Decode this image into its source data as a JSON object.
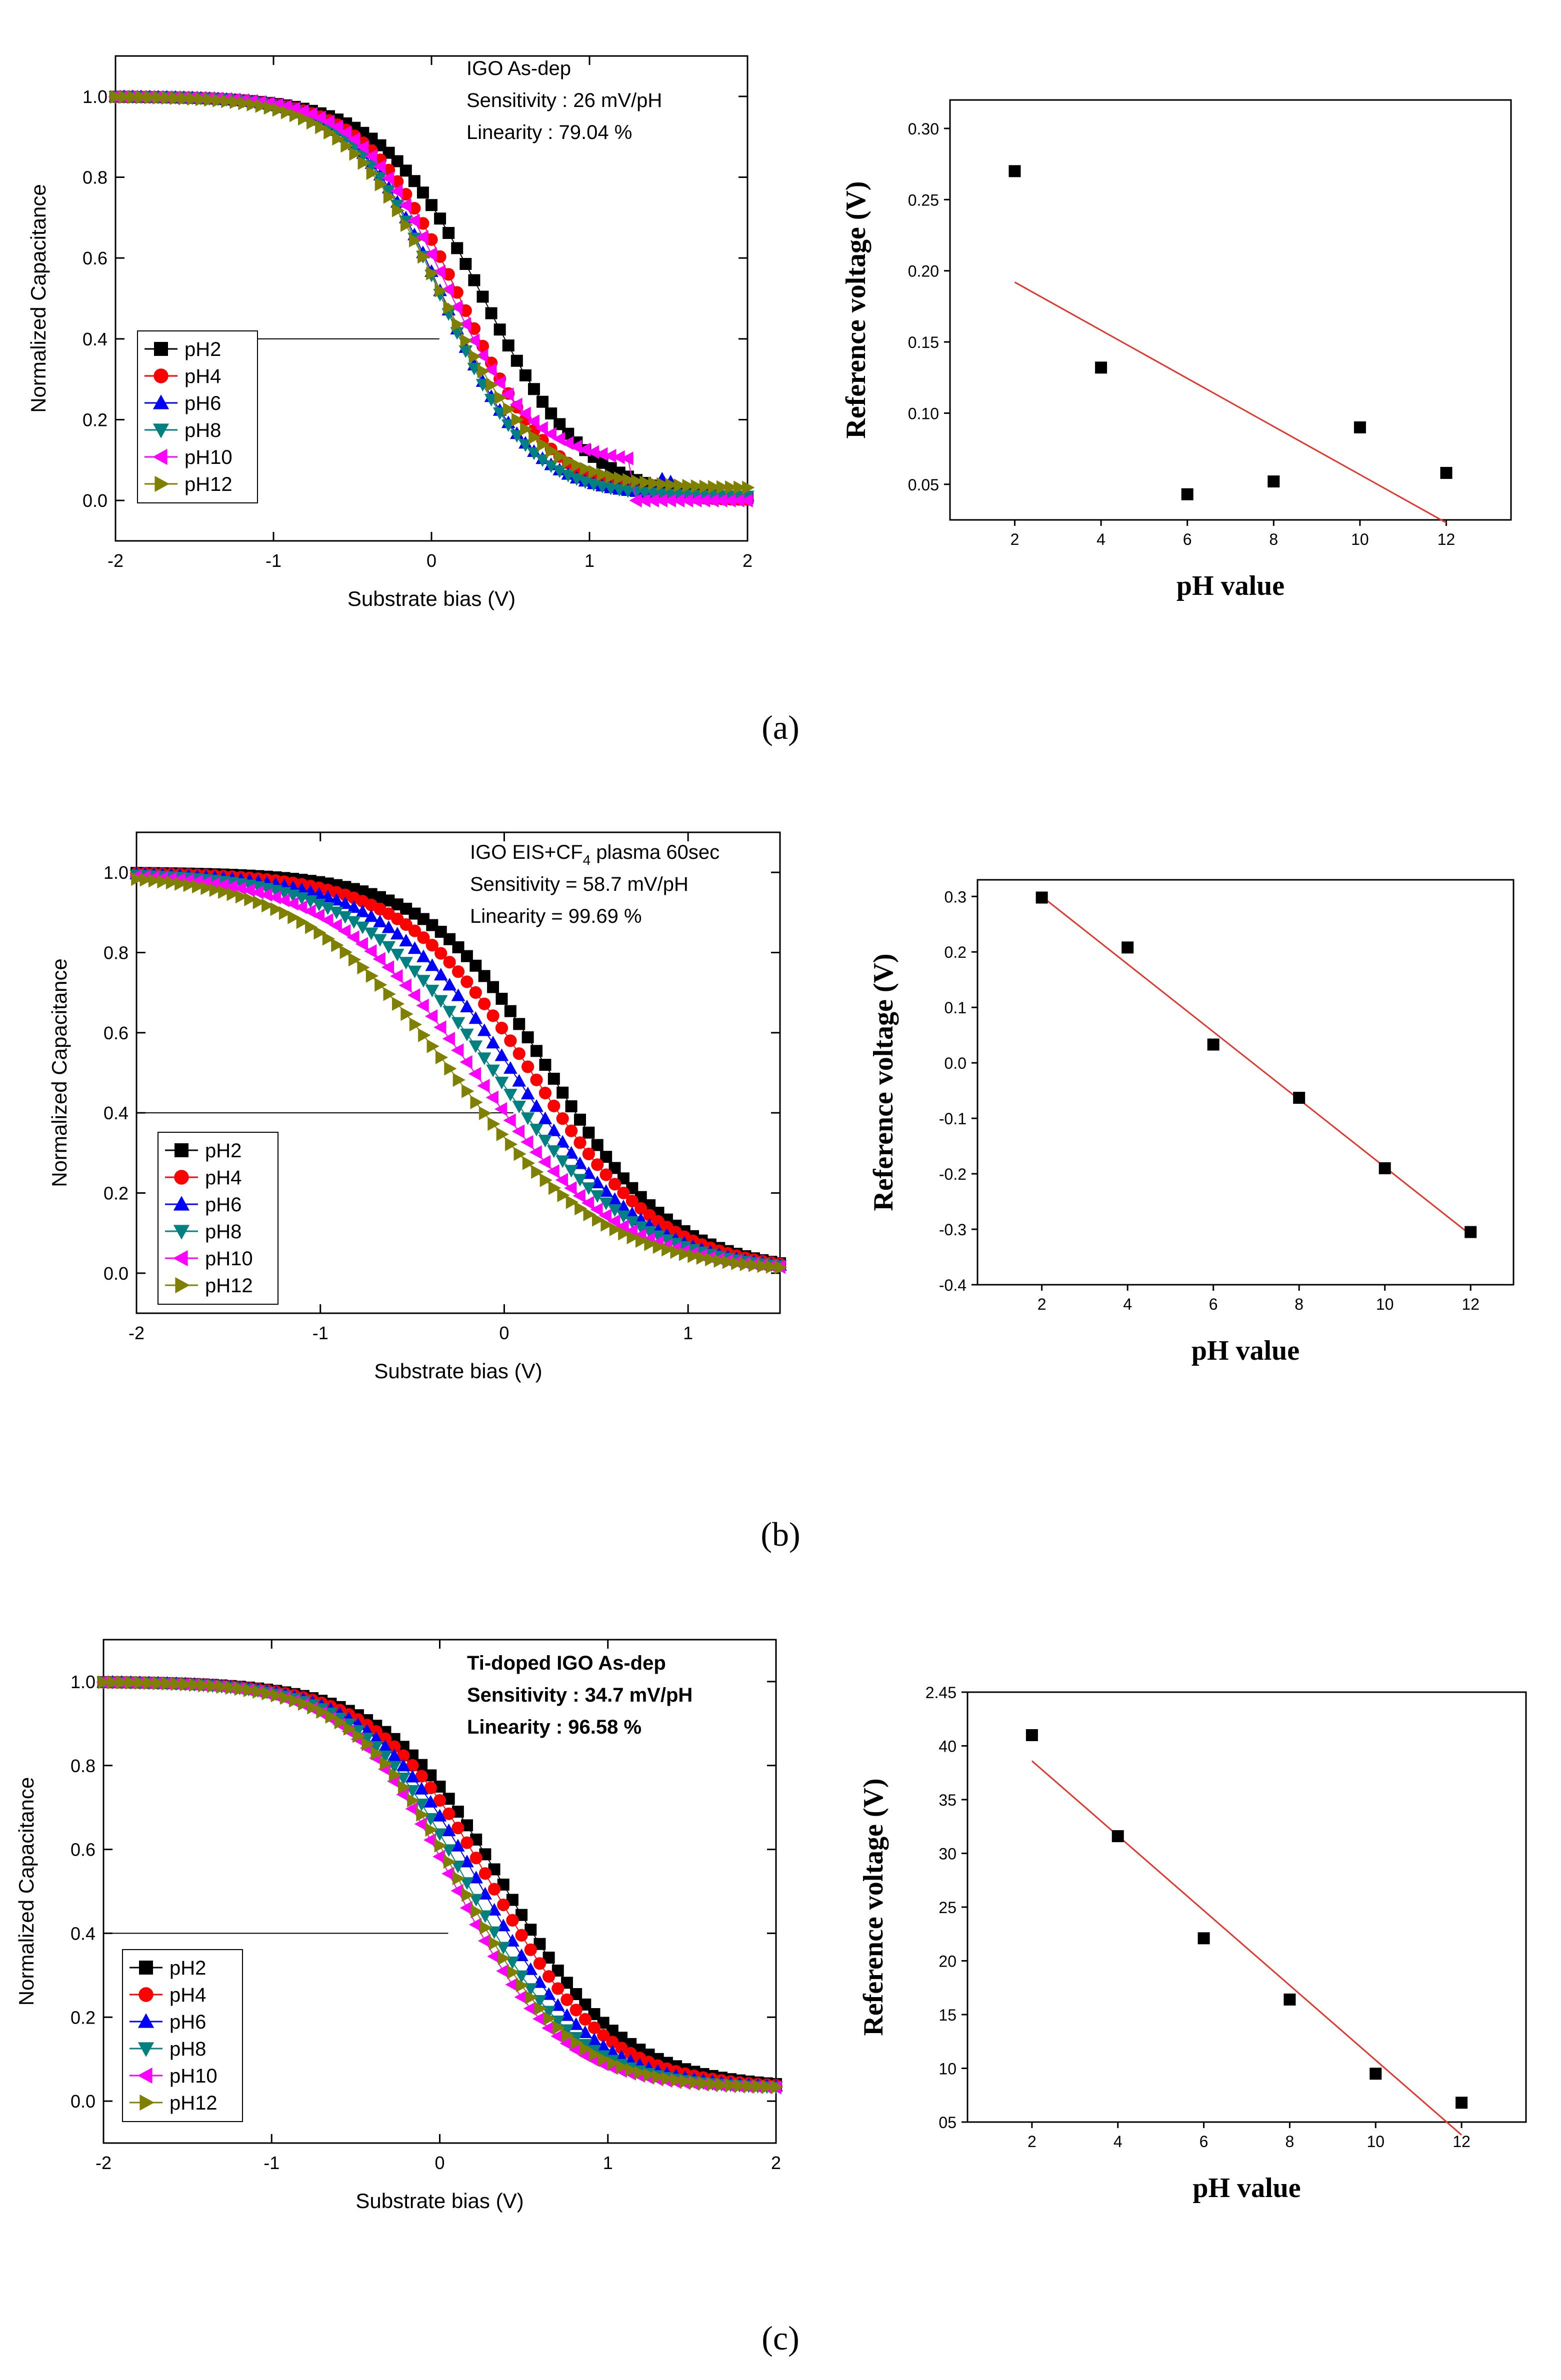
{
  "figure": {
    "panel_labels": [
      "(a)",
      "(b)",
      "(c)"
    ]
  },
  "colors": {
    "pH2": "#000000",
    "pH4": "#ff0000",
    "pH6": "#0000ff",
    "pH8": "#008080",
    "pH10": "#ff00ff",
    "pH12": "#808000",
    "fit": "#e8332a"
  },
  "chart_data": [
    {
      "id": "a-cv",
      "panel": "(a)",
      "type": "line",
      "title": "",
      "xlabel": "Substrate bias (V)",
      "ylabel": "Normalized Capacitance",
      "xlim": [
        -2,
        2
      ],
      "ylim": [
        -0.1,
        1.1
      ],
      "xticks": [
        "-2",
        "-1",
        "0",
        "1",
        "2"
      ],
      "yticks": [
        "0.0",
        "0.2",
        "0.4",
        "0.6",
        "0.8",
        "1.0"
      ],
      "annotations": [
        "IGO As-dep",
        "Sensitivity : 26 mV/pH",
        "Linearity : 79.04 %"
      ],
      "reference_line": {
        "y": 0.4,
        "x_from": -1.52,
        "x_to": 0.05
      },
      "legend": [
        "pH2",
        "pH4",
        "pH6",
        "pH8",
        "pH10",
        "pH12"
      ],
      "series": [
        {
          "name": "pH2",
          "v0": 0.33,
          "k": 0.33,
          "floor": 0.0
        },
        {
          "name": "pH4",
          "v0": 0.18,
          "k": 0.3,
          "floor": 0.0
        },
        {
          "name": "pH6",
          "v0": 0.07,
          "k": 0.28,
          "floor": 0.01,
          "bump": {
            "x": 1.48,
            "y": 0.04
          }
        },
        {
          "name": "pH8",
          "v0": 0.06,
          "k": 0.28,
          "floor": 0.01
        },
        {
          "name": "pH10",
          "v0": 0.08,
          "k": 0.28,
          "floor": 0.09,
          "plateau_end": 1.28
        },
        {
          "name": "pH12",
          "v0": 0.06,
          "k": 0.31,
          "floor": 0.03
        }
      ]
    },
    {
      "id": "a-ref",
      "panel": "(a)",
      "type": "scatter",
      "xlabel": "pH value",
      "ylabel": "Reference voltage (V)",
      "xlim": [
        0.5,
        13.5
      ],
      "ylim": [
        0.025,
        0.32
      ],
      "xticks": [
        "2",
        "4",
        "6",
        "8",
        "10",
        "12"
      ],
      "yticks": [
        "0.05",
        "0.10",
        "0.15",
        "0.20",
        "0.25",
        "0.30"
      ],
      "x": [
        2,
        4,
        6,
        8,
        10,
        12
      ],
      "y": [
        0.27,
        0.132,
        0.043,
        0.052,
        0.09,
        0.058
      ],
      "fit": {
        "x": [
          2,
          12
        ],
        "y": [
          0.192,
          0.023
        ]
      }
    },
    {
      "id": "b-cv",
      "panel": "(b)",
      "type": "line",
      "title": "",
      "xlabel": "Substrate bias (V)",
      "ylabel": "Normalized Capacitance",
      "xlim": [
        -2,
        1.5
      ],
      "ylim": [
        -0.1,
        1.1
      ],
      "xticks": [
        "-2",
        "-1",
        "0",
        "1"
      ],
      "yticks": [
        "0.0",
        "0.2",
        "0.4",
        "0.6",
        "0.8",
        "1.0"
      ],
      "annotations": [
        "IGO EIS+CF",
        "4",
        " plasma 60sec",
        "Sensitivity = 58.7 mV/pH",
        "Linearity = 99.69 %"
      ],
      "reference_line": {
        "y": 0.4,
        "x_from": -2,
        "x_to": 0.05
      },
      "legend": [
        "pH2",
        "pH4",
        "pH6",
        "pH8",
        "pH10",
        "pH12"
      ],
      "series": [
        {
          "name": "pH2",
          "v0": 0.25,
          "k": 0.34,
          "floor": 0.0
        },
        {
          "name": "pH4",
          "v0": 0.15,
          "k": 0.36,
          "floor": 0.0
        },
        {
          "name": "pH6",
          "v0": 0.05,
          "k": 0.37,
          "floor": 0.0
        },
        {
          "name": "pH8",
          "v0": -0.05,
          "k": 0.39,
          "floor": 0.0
        },
        {
          "name": "pH10",
          "v0": -0.16,
          "k": 0.4,
          "floor": 0.0
        },
        {
          "name": "pH12",
          "v0": -0.28,
          "k": 0.42,
          "floor": 0.0
        }
      ]
    },
    {
      "id": "b-ref",
      "panel": "(b)",
      "type": "scatter",
      "xlabel": "pH value",
      "ylabel": "Reference voltage (V)",
      "xlim": [
        0.5,
        13
      ],
      "ylim": [
        -0.4,
        0.33
      ],
      "xticks": [
        "2",
        "4",
        "6",
        "8",
        "10",
        "12"
      ],
      "yticks": [
        "-0.4",
        "-0.3",
        "-0.2",
        "-0.1",
        "0.0",
        "0.1",
        "0.2",
        "0.3"
      ],
      "x": [
        2,
        4,
        6,
        8,
        10,
        12
      ],
      "y": [
        0.298,
        0.208,
        0.033,
        -0.063,
        -0.19,
        -0.305
      ],
      "fit": {
        "x": [
          2,
          12
        ],
        "y": [
          0.3,
          -0.31
        ]
      }
    },
    {
      "id": "c-cv",
      "panel": "(c)",
      "type": "line",
      "title": "",
      "xlabel": "Substrate bias (V)",
      "ylabel": "Normalized Capacitance",
      "xlim": [
        -2,
        2
      ],
      "ylim": [
        -0.1,
        1.1
      ],
      "xticks": [
        "-2",
        "-1",
        "0",
        "1",
        "2"
      ],
      "yticks": [
        "0.0",
        "0.2",
        "0.4",
        "0.6",
        "0.8",
        "1.0"
      ],
      "annotations": [
        "Ti-doped IGO As-dep",
        "Sensitivity : 34.7 mV/pH",
        "Linearity : 96.58 %"
      ],
      "reference_line": {
        "y": 0.4,
        "x_from": -2,
        "x_to": 0.05
      },
      "legend": [
        "pH2",
        "pH4",
        "pH6",
        "pH8",
        "pH10",
        "pH12"
      ],
      "series": [
        {
          "name": "pH2",
          "v0": 0.38,
          "k": 0.36,
          "floor": 0.03
        },
        {
          "name": "pH4",
          "v0": 0.31,
          "k": 0.35,
          "floor": 0.03
        },
        {
          "name": "pH6",
          "v0": 0.24,
          "k": 0.34,
          "floor": 0.03
        },
        {
          "name": "pH8",
          "v0": 0.17,
          "k": 0.33,
          "floor": 0.03
        },
        {
          "name": "pH10",
          "v0": 0.09,
          "k": 0.32,
          "floor": 0.03
        },
        {
          "name": "pH12",
          "v0": 0.13,
          "k": 0.33,
          "floor": 0.03
        }
      ]
    },
    {
      "id": "c-ref",
      "panel": "(c)",
      "type": "scatter",
      "xlabel": "pH value",
      "ylabel": "Reference voltage (V)",
      "xlim": [
        0.5,
        13.5
      ],
      "ylim": [
        0.5,
        4.5
      ],
      "xticks": [
        "2",
        "4",
        "6",
        "8",
        "10",
        "12"
      ],
      "yticks": [
        "05",
        "10",
        "15",
        "20",
        "25",
        "30",
        "35",
        "40",
        "2.45"
      ],
      "x": [
        2,
        4,
        6,
        8,
        10,
        12
      ],
      "y": [
        4.1,
        3.16,
        2.21,
        1.64,
        0.95,
        0.68
      ],
      "fit": {
        "x": [
          2,
          12
        ],
        "y": [
          3.86,
          0.38
        ]
      }
    }
  ]
}
